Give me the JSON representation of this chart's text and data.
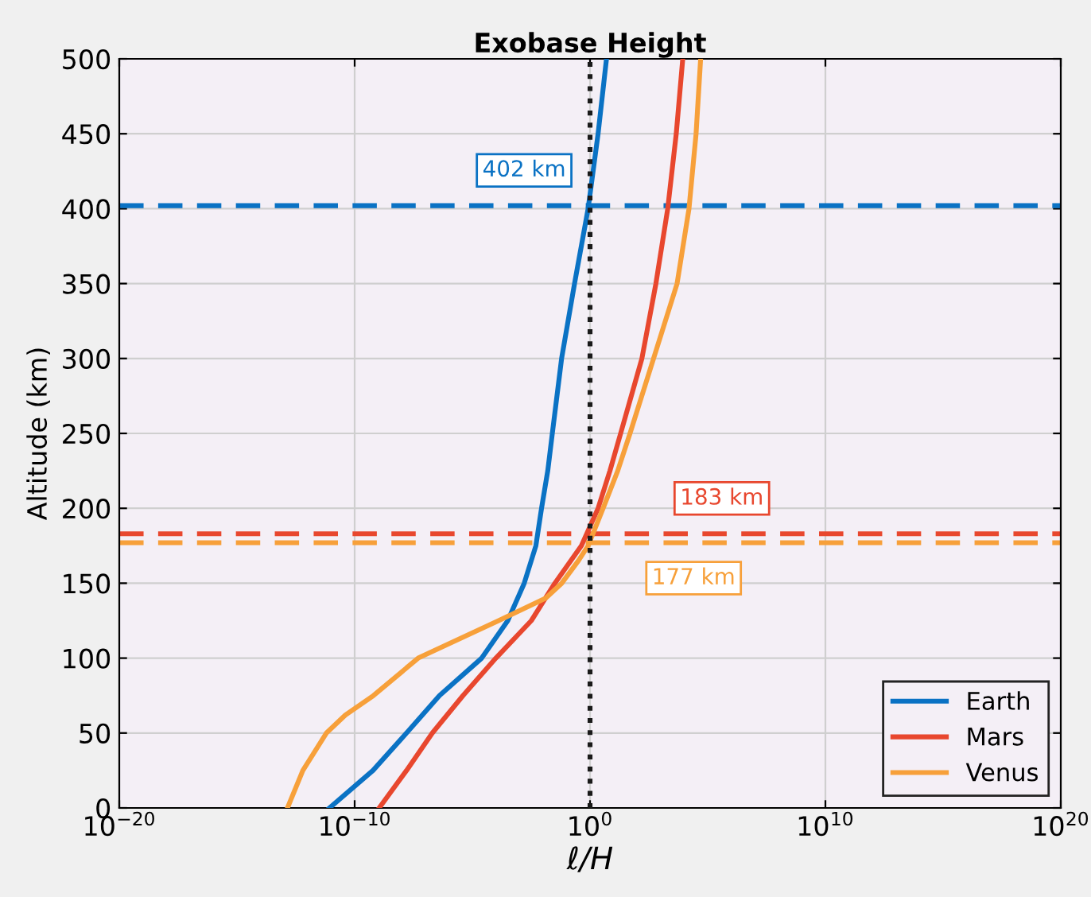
{
  "chart_data": {
    "type": "line",
    "title": "Exobase Height",
    "xlabel": "ℓ/H",
    "ylabel": "Altitude (km)",
    "log": "x",
    "xlim": [
      1e-20,
      1e+20
    ],
    "ylim": [
      0,
      500
    ],
    "xticks": [
      {
        "value": 1e-20,
        "label": "10$^{−20}$"
      },
      {
        "value": 1e-10,
        "label": "10$^{−10}$"
      },
      {
        "value": 1,
        "label": "10$^{0}$"
      },
      {
        "value": 10000000000.0,
        "label": "10$^{10}$"
      },
      {
        "value": 1e+20,
        "label": "10$^{20}$"
      }
    ],
    "yticks": [
      0,
      50,
      100,
      150,
      200,
      250,
      300,
      350,
      400,
      450,
      500
    ],
    "grid": true,
    "legend": "bottom right",
    "line_style": "solid",
    "marker": "none",
    "series": [
      {
        "name": "Earth",
        "color": "#0a72c4",
        "x": [
          8.5e-12,
          6e-10,
          1.6e-08,
          4e-07,
          2.5e-05,
          0.00032,
          0.0016,
          0.005,
          0.0087,
          0.016,
          0.025,
          0.062,
          0.22,
          0.83,
          2.2,
          5
        ],
        "values": [
          0,
          25,
          50,
          75,
          100,
          125,
          150,
          175,
          200,
          225,
          250,
          300,
          350,
          400,
          450,
          500
        ]
      },
      {
        "name": "Mars",
        "color": "#e8472e",
        "x": [
          1.1e-09,
          1.6e-08,
          2e-07,
          4e-06,
          0.0001,
          0.0032,
          0.032,
          0.43,
          2.2,
          7,
          20,
          160,
          630,
          2000,
          4600,
          8700
        ],
        "values": [
          0,
          25,
          50,
          75,
          100,
          125,
          150,
          175,
          200,
          225,
          250,
          300,
          350,
          400,
          450,
          500
        ]
      },
      {
        "name": "Venus",
        "color": "#f7a03a",
        "x": [
          1.4e-13,
          6.3e-13,
          6.3e-12,
          4e-11,
          6.3e-10,
          5e-08,
          0.00013,
          0.013,
          0.063,
          0.32,
          0.83,
          3.6,
          15,
          50,
          500,
          5000,
          16000,
          32000,
          50000
        ],
        "values": [
          0,
          25,
          50,
          62,
          75,
          100,
          125,
          140,
          150,
          165,
          175,
          200,
          225,
          250,
          300,
          350,
          400,
          450,
          500
        ]
      }
    ],
    "ref_lines": [
      {
        "axis": "x",
        "value": 1,
        "color": "#1a1a1a",
        "line_style": "dotted"
      },
      {
        "axis": "y",
        "value": 402,
        "label": "402 km",
        "color": "#0a72c4",
        "line_style": "dashed"
      },
      {
        "axis": "y",
        "value": 183,
        "label": "183 km",
        "color": "#e8472e",
        "line_style": "dashed"
      },
      {
        "axis": "y",
        "value": 177,
        "label": "177 km",
        "color": "#f7a03a",
        "line_style": "dashed"
      }
    ]
  }
}
